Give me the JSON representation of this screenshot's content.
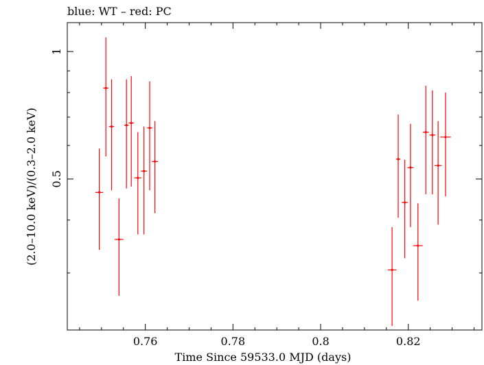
{
  "chart_data": {
    "type": "scatter",
    "title": "blue: WT – red: PC",
    "xlabel": "Time Since 59533.0 MJD (days)",
    "ylabel": "(2.0–10.0 keV)/(0.3–2.0 keV)",
    "xlim": [
      0.7422,
      0.8368
    ],
    "ylim": [
      0.22,
      1.17
    ],
    "y_scale": "log",
    "grid": false,
    "x_ticks": [
      0.76,
      0.78,
      0.8,
      0.82
    ],
    "x_tick_labels": [
      "0.76",
      "0.78",
      "0.8",
      "0.82"
    ],
    "y_ticks": [
      0.5,
      1
    ],
    "y_tick_labels": [
      "0.5",
      "1"
    ],
    "series": [
      {
        "color": "#ff0000",
        "points": [
          {
            "x": 0.7495,
            "xerr": 0.0009,
            "y": 0.465,
            "ylo": 0.34,
            "yhi": 0.59
          },
          {
            "x": 0.751,
            "xerr": 0.0006,
            "y": 0.82,
            "ylo": 0.565,
            "yhi": 1.08
          },
          {
            "x": 0.7523,
            "xerr": 0.0006,
            "y": 0.665,
            "ylo": 0.47,
            "yhi": 0.86
          },
          {
            "x": 0.754,
            "xerr": 0.001,
            "y": 0.36,
            "ylo": 0.265,
            "yhi": 0.45
          },
          {
            "x": 0.7557,
            "xerr": 0.0005,
            "y": 0.67,
            "ylo": 0.475,
            "yhi": 0.86
          },
          {
            "x": 0.7568,
            "xerr": 0.0006,
            "y": 0.678,
            "ylo": 0.48,
            "yhi": 0.875
          },
          {
            "x": 0.7583,
            "xerr": 0.0008,
            "y": 0.503,
            "ylo": 0.37,
            "yhi": 0.645
          },
          {
            "x": 0.7597,
            "xerr": 0.0007,
            "y": 0.522,
            "ylo": 0.37,
            "yhi": 0.665
          },
          {
            "x": 0.761,
            "xerr": 0.0006,
            "y": 0.66,
            "ylo": 0.47,
            "yhi": 0.85
          },
          {
            "x": 0.7622,
            "xerr": 0.0007,
            "y": 0.55,
            "ylo": 0.415,
            "yhi": 0.685
          },
          {
            "x": 0.8163,
            "xerr": 0.001,
            "y": 0.305,
            "ylo": 0.225,
            "yhi": 0.385
          },
          {
            "x": 0.8177,
            "xerr": 0.0005,
            "y": 0.557,
            "ylo": 0.405,
            "yhi": 0.71
          },
          {
            "x": 0.8192,
            "xerr": 0.0007,
            "y": 0.44,
            "ylo": 0.325,
            "yhi": 0.555
          },
          {
            "x": 0.8205,
            "xerr": 0.0007,
            "y": 0.532,
            "ylo": 0.385,
            "yhi": 0.675
          },
          {
            "x": 0.8222,
            "xerr": 0.0011,
            "y": 0.348,
            "ylo": 0.258,
            "yhi": 0.438
          },
          {
            "x": 0.824,
            "xerr": 0.0007,
            "y": 0.645,
            "ylo": 0.46,
            "yhi": 0.83
          },
          {
            "x": 0.8255,
            "xerr": 0.0007,
            "y": 0.635,
            "ylo": 0.46,
            "yhi": 0.81
          },
          {
            "x": 0.8268,
            "xerr": 0.0008,
            "y": 0.538,
            "ylo": 0.39,
            "yhi": 0.685
          },
          {
            "x": 0.8285,
            "xerr": 0.0012,
            "y": 0.628,
            "ylo": 0.455,
            "yhi": 0.8
          }
        ]
      }
    ]
  }
}
